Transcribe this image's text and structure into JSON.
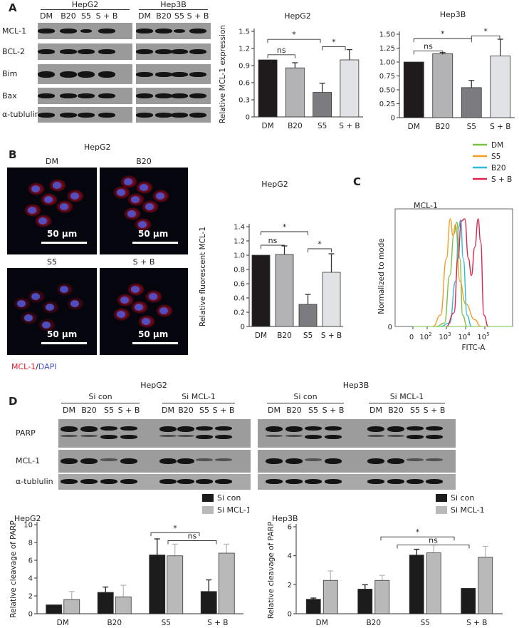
{
  "panel_labels": {
    "a": "A",
    "b": "B",
    "c": "C",
    "d": "D"
  },
  "colors": {
    "dm": "#1f1a1b",
    "b20": "#b3b3b5",
    "s5": "#7b7b80",
    "sb": "#e1e2e6",
    "sicon": "#1c1c1c",
    "simcl": "#b9b9b9",
    "flow_dm": "#7ac143",
    "flow_s5": "#f39c26",
    "flow_b20": "#2fbcd8",
    "flow_sb": "#e0224c",
    "mcl": "#e0192c",
    "dapi": "#4450c8"
  },
  "panel_a": {
    "cell_lines": [
      "HepG2",
      "Hep3B"
    ],
    "lanes": [
      "DM",
      "B20",
      "S5",
      "S + B"
    ],
    "proteins": [
      "MCL-1",
      "BCL-2",
      "Bim",
      "Bax",
      "α-tublulin"
    ]
  },
  "panel_b": {
    "title": "HepG2",
    "conditions": [
      "DM",
      "B20",
      "S5",
      "S + B"
    ],
    "scale_label": "50 μm",
    "stain_mcl": "MCL-1",
    "stain_sep": "/",
    "stain_dapi": "DAPI"
  },
  "panel_c": {
    "title": "MCL-1",
    "ylabel": "Normalized to mode",
    "xlabel": "FITC-A",
    "xticks": [
      "0",
      "10",
      "10",
      "10",
      "10"
    ],
    "xtick_exp": [
      "",
      "2",
      "3",
      "4",
      "5"
    ],
    "yticks": [
      "0"
    ],
    "legend": [
      "DM",
      "S5",
      "B20",
      "S + B"
    ]
  },
  "panel_d": {
    "cell_lines": [
      "HepG2",
      "Hep3B"
    ],
    "groups": [
      "Si con",
      "Si MCL-1"
    ],
    "lanes": [
      "DM",
      "B20",
      "S5",
      "S + B"
    ],
    "proteins": [
      "PARP",
      "MCL-1",
      "α-tublulin"
    ]
  },
  "chart_data": [
    {
      "type": "bar",
      "title": "HepG2",
      "categories": [
        "DM",
        "B20",
        "S5",
        "S + B"
      ],
      "values": [
        1.0,
        0.86,
        0.43,
        1.0
      ],
      "errors": [
        0,
        0.09,
        0.16,
        0.18
      ],
      "ylabel": "Relative MCL-1 expression",
      "ylim": [
        0,
        1.5
      ],
      "yticks": [
        "0",
        "0.3",
        "0.6",
        "0.9",
        "1.2",
        "1.5"
      ],
      "annotations": [
        {
          "text": "ns",
          "pair": [
            "DM",
            "B20"
          ]
        },
        {
          "text": "*",
          "pair": [
            "DM",
            "S5"
          ]
        },
        {
          "text": "*",
          "pair": [
            "S5",
            "S + B"
          ]
        }
      ]
    },
    {
      "type": "bar",
      "title": "Hep3B",
      "categories": [
        "DM",
        "B20",
        "S5",
        "S + B"
      ],
      "values": [
        1.0,
        1.15,
        0.54,
        1.11
      ],
      "errors": [
        0,
        0.02,
        0.13,
        0.3
      ],
      "ylabel": "",
      "ylim": [
        0,
        1.5
      ],
      "yticks": [
        "0",
        "0.25",
        "0.50",
        "0.75",
        "1.00",
        "1.25",
        "1.50"
      ],
      "annotations": [
        {
          "text": "ns",
          "pair": [
            "DM",
            "B20"
          ]
        },
        {
          "text": "*",
          "pair": [
            "DM",
            "S5"
          ]
        },
        {
          "text": "*",
          "pair": [
            "S5",
            "S + B"
          ]
        }
      ]
    },
    {
      "type": "bar",
      "title": "HepG2",
      "categories": [
        "DM",
        "B20",
        "S5",
        "S + B"
      ],
      "values": [
        1.0,
        1.01,
        0.31,
        0.76
      ],
      "errors": [
        0,
        0.12,
        0.14,
        0.26
      ],
      "ylabel": "Relative fluorescent MCL-1",
      "ylim": [
        0,
        1.4
      ],
      "yticks": [
        "0",
        "0.2",
        "0.4",
        "0.6",
        "0.8",
        "1.0",
        "1.2",
        "1.4"
      ],
      "annotations": [
        {
          "text": "ns",
          "pair": [
            "DM",
            "B20"
          ]
        },
        {
          "text": "*",
          "pair": [
            "DM",
            "S5"
          ]
        },
        {
          "text": "*",
          "pair": [
            "S5",
            "S + B"
          ]
        }
      ]
    },
    {
      "type": "bar",
      "title": "HepG2",
      "categories": [
        "DM",
        "B20",
        "S5",
        "S + B"
      ],
      "series": [
        {
          "name": "Si con",
          "values": [
            1.0,
            2.4,
            6.6,
            2.5
          ],
          "errors": [
            0,
            0.6,
            1.8,
            1.3
          ]
        },
        {
          "name": "Si MCL-1",
          "values": [
            1.6,
            1.9,
            6.5,
            6.8
          ],
          "errors": [
            0.9,
            1.3,
            1.3,
            1.0
          ]
        }
      ],
      "ylabel": "Relative cleavage of PARP",
      "ylim": [
        0,
        10
      ],
      "yticks": [
        "0",
        "2",
        "4",
        "6",
        "8",
        "10"
      ],
      "annotations": [
        {
          "text": "*",
          "pair": [
            "S5",
            "S + B"
          ]
        },
        {
          "text": "ns",
          "pair": [
            "S5",
            "S + B"
          ]
        }
      ]
    },
    {
      "type": "bar",
      "title": "Hep3B",
      "categories": [
        "DM",
        "B20",
        "S5",
        "S + B"
      ],
      "series": [
        {
          "name": "Si con",
          "values": [
            1.0,
            1.7,
            4.05,
            1.75
          ],
          "errors": [
            0.08,
            0.3,
            0.4,
            0
          ]
        },
        {
          "name": "Si MCL-1",
          "values": [
            2.3,
            2.3,
            4.2,
            3.9
          ],
          "errors": [
            0.65,
            0.35,
            0.55,
            0.75
          ]
        }
      ],
      "ylabel": "Relative cleavage of PARP",
      "ylim": [
        0,
        6
      ],
      "yticks": [
        "0",
        "2",
        "4",
        "6"
      ],
      "annotations": [
        {
          "text": "*",
          "pair": [
            "S5",
            "S + B"
          ]
        },
        {
          "text": "ns",
          "pair": [
            "S5",
            "S + B"
          ]
        }
      ]
    },
    {
      "type": "line",
      "title": "MCL-1",
      "xlabel": "FITC-A",
      "ylabel": "Normalized to mode",
      "xscale": "log",
      "series": [
        {
          "name": "DM",
          "x": [
            300,
            800,
            1500,
            2500,
            3500,
            5000,
            7000,
            12000
          ],
          "y": [
            0,
            3,
            45,
            82,
            92,
            60,
            10,
            0
          ]
        },
        {
          "name": "S5",
          "x": [
            200,
            500,
            1000,
            1600,
            2200,
            3000,
            5000,
            10000,
            30000,
            60000
          ],
          "y": [
            0,
            10,
            60,
            95,
            80,
            90,
            40,
            20,
            6,
            0
          ]
        },
        {
          "name": "B20",
          "x": [
            500,
            1500,
            3000,
            4500,
            5500,
            7500,
            12000,
            20000
          ],
          "y": [
            0,
            3,
            40,
            88,
            94,
            60,
            10,
            0
          ]
        },
        {
          "name": "S + B",
          "x": [
            1000,
            2500,
            4000,
            6000,
            9000,
            14000,
            20000,
            30000,
            45000,
            60000,
            90000,
            150000
          ],
          "y": [
            0,
            12,
            60,
            93,
            95,
            60,
            45,
            70,
            95,
            75,
            10,
            0
          ]
        }
      ],
      "legend": "top-right"
    }
  ]
}
